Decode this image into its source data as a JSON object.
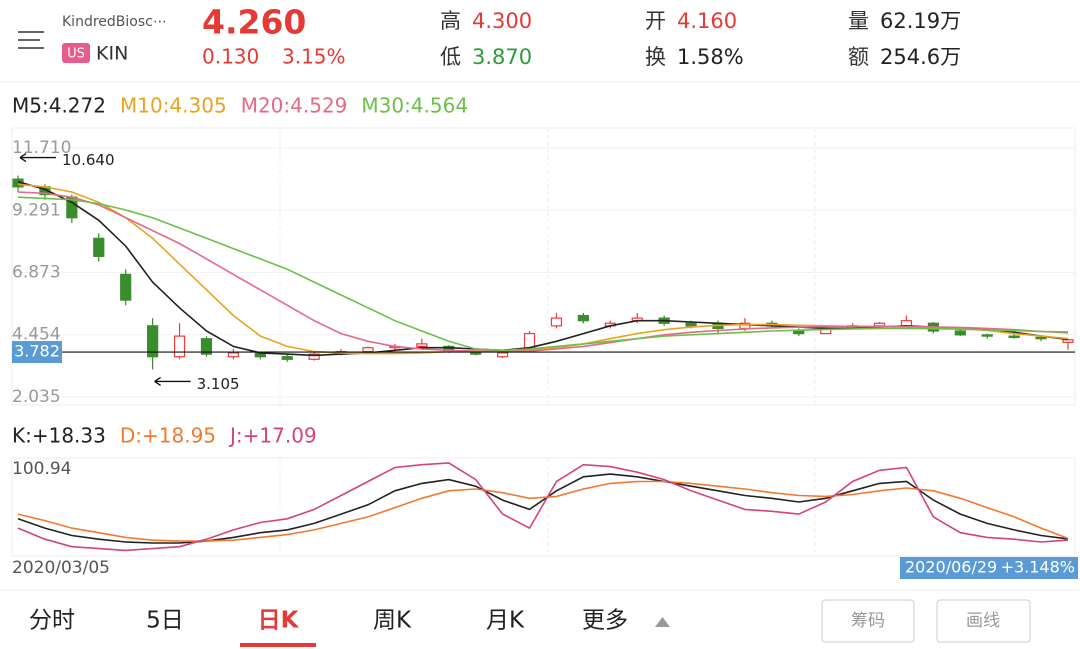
{
  "header": {
    "name": "KindredBiosc⋯",
    "market": "US",
    "ticker": "KIN",
    "price": "4.260",
    "change": "0.130",
    "change_pct": "3.15%",
    "stats": [
      {
        "label": "高",
        "value": "4.300",
        "color": "#e53935"
      },
      {
        "label": "低",
        "value": "3.870",
        "color": "#2e9a3a"
      },
      {
        "label": "开",
        "value": "4.160",
        "color": "#e53935"
      },
      {
        "label": "换",
        "value": "1.58%",
        "color": "#222222"
      },
      {
        "label": "量",
        "value": "62.19万",
        "color": "#222222"
      },
      {
        "label": "额",
        "value": "254.6万",
        "color": "#222222"
      }
    ]
  },
  "chart_data": [
    {
      "type": "candlestick",
      "ylim": [
        2.035,
        11.71
      ],
      "yticks": [
        {
          "value": 11.71,
          "label": "11.710"
        },
        9.291,
        6.873,
        4.454,
        2.035
      ],
      "up_color": "#ee3b3b",
      "down_color": "#3a8d2d",
      "ref_line": 3.782,
      "annotations": [
        {
          "value": 10.64,
          "label": "10.640"
        },
        3.105
      ],
      "candles": [
        [
          10.5,
          10.64,
          10.0,
          10.2
        ],
        [
          10.2,
          10.3,
          9.7,
          9.9
        ],
        [
          9.8,
          9.9,
          8.8,
          9.0
        ],
        [
          8.2,
          8.4,
          7.3,
          7.5
        ],
        [
          6.8,
          7.0,
          5.6,
          5.8
        ],
        [
          4.8,
          5.1,
          3.105,
          3.6
        ],
        [
          3.6,
          4.9,
          3.5,
          4.4
        ],
        [
          4.3,
          4.4,
          3.6,
          3.7
        ],
        [
          3.6,
          3.9,
          3.5,
          3.75
        ],
        [
          3.75,
          3.8,
          3.5,
          3.6
        ],
        [
          3.6,
          3.7,
          3.4,
          3.5
        ],
        [
          3.5,
          3.8,
          3.45,
          3.7
        ],
        [
          3.7,
          3.9,
          3.65,
          3.8
        ],
        [
          3.8,
          4.0,
          3.7,
          3.95
        ],
        [
          3.95,
          4.1,
          3.85,
          4.0
        ],
        [
          4.0,
          4.3,
          3.9,
          4.1
        ],
        [
          4.0,
          4.05,
          3.75,
          3.8
        ],
        [
          3.8,
          3.85,
          3.65,
          3.7
        ],
        [
          3.6,
          3.8,
          3.55,
          3.75
        ],
        [
          3.8,
          4.6,
          3.8,
          4.5
        ],
        [
          4.8,
          5.3,
          4.7,
          5.1
        ],
        [
          5.2,
          5.3,
          4.9,
          5.0
        ],
        [
          4.8,
          5.0,
          4.7,
          4.9
        ],
        [
          5.0,
          5.3,
          4.9,
          5.1
        ],
        [
          5.1,
          5.2,
          4.8,
          4.9
        ],
        [
          4.9,
          5.0,
          4.7,
          4.8
        ],
        [
          4.9,
          5.0,
          4.5,
          4.7
        ],
        [
          4.7,
          5.1,
          4.6,
          4.9
        ],
        [
          4.9,
          5.0,
          4.7,
          4.8
        ],
        [
          4.6,
          4.7,
          4.4,
          4.5
        ],
        [
          4.5,
          4.8,
          4.5,
          4.7
        ],
        [
          4.7,
          4.9,
          4.65,
          4.8
        ],
        [
          4.8,
          4.95,
          4.7,
          4.9
        ],
        [
          4.8,
          5.2,
          4.75,
          5.0
        ],
        [
          4.9,
          4.95,
          4.5,
          4.6
        ],
        [
          4.6,
          4.65,
          4.4,
          4.45
        ],
        [
          4.45,
          4.5,
          4.3,
          4.4
        ],
        [
          4.4,
          4.5,
          4.3,
          4.35
        ],
        [
          4.35,
          4.4,
          4.2,
          4.3
        ],
        [
          4.16,
          4.3,
          3.87,
          4.26
        ]
      ],
      "series": [
        {
          "name": "M5:4.272",
          "color": "#222222",
          "values": [
            10.4,
            10.1,
            9.6,
            8.9,
            7.9,
            6.5,
            5.5,
            4.6,
            4.0,
            3.75,
            3.7,
            3.65,
            3.7,
            3.75,
            3.85,
            3.95,
            3.95,
            3.9,
            3.85,
            3.95,
            4.2,
            4.5,
            4.8,
            5.0,
            5.0,
            4.95,
            4.9,
            4.85,
            4.8,
            4.75,
            4.7,
            4.7,
            4.75,
            4.8,
            4.75,
            4.7,
            4.65,
            4.55,
            4.4,
            4.272
          ]
        },
        {
          "name": "M10:4.305",
          "color": "#e8a320",
          "values": [
            10.3,
            10.2,
            10.0,
            9.6,
            9.0,
            8.2,
            7.2,
            6.2,
            5.2,
            4.4,
            4.0,
            3.8,
            3.75,
            3.72,
            3.72,
            3.75,
            3.8,
            3.82,
            3.83,
            3.85,
            3.95,
            4.1,
            4.3,
            4.5,
            4.65,
            4.75,
            4.82,
            4.85,
            4.85,
            4.82,
            4.8,
            4.78,
            4.77,
            4.76,
            4.74,
            4.7,
            4.62,
            4.5,
            4.4,
            4.305
          ]
        },
        {
          "name": "M20:4.529",
          "color": "#e56a87",
          "values": [
            10.0,
            9.95,
            9.8,
            9.5,
            9.0,
            8.5,
            8.0,
            7.4,
            6.8,
            6.2,
            5.6,
            5.0,
            4.5,
            4.2,
            4.0,
            3.9,
            3.85,
            3.82,
            3.8,
            3.82,
            3.9,
            4.0,
            4.15,
            4.3,
            4.45,
            4.55,
            4.62,
            4.68,
            4.72,
            4.75,
            4.77,
            4.78,
            4.78,
            4.77,
            4.76,
            4.74,
            4.7,
            4.65,
            4.58,
            4.529
          ]
        },
        {
          "name": "M30:4.564",
          "color": "#6cc04a",
          "values": [
            9.8,
            9.75,
            9.7,
            9.55,
            9.3,
            9.0,
            8.6,
            8.2,
            7.8,
            7.4,
            7.0,
            6.5,
            6.0,
            5.5,
            5.0,
            4.6,
            4.2,
            3.9,
            3.85,
            3.9,
            4.0,
            4.1,
            4.2,
            4.3,
            4.4,
            4.45,
            4.5,
            4.55,
            4.6,
            4.63,
            4.66,
            4.68,
            4.7,
            4.7,
            4.69,
            4.67,
            4.64,
            4.61,
            4.58,
            4.564
          ]
        }
      ]
    },
    {
      "type": "line",
      "ylim": [
        0,
        100.94
      ],
      "yticks": [
        100.94
      ],
      "series": [
        {
          "name": "K:+18.33",
          "color": "#222222",
          "values": [
            40,
            30,
            22,
            18,
            15,
            14,
            14,
            16,
            20,
            25,
            28,
            35,
            45,
            55,
            70,
            78,
            82,
            75,
            60,
            50,
            70,
            85,
            88,
            85,
            80,
            75,
            70,
            65,
            62,
            58,
            62,
            70,
            78,
            80,
            60,
            45,
            35,
            28,
            22,
            18.33
          ]
        },
        {
          "name": "D:+18.95",
          "color": "#f07a30",
          "values": [
            45,
            38,
            30,
            25,
            20,
            17,
            16,
            16,
            17,
            20,
            23,
            28,
            35,
            42,
            52,
            62,
            70,
            72,
            68,
            62,
            64,
            72,
            78,
            80,
            80,
            78,
            75,
            72,
            68,
            65,
            64,
            66,
            70,
            73,
            70,
            62,
            52,
            42,
            30,
            18.95
          ]
        },
        {
          "name": "J:+17.09",
          "color": "#d2437f",
          "values": [
            30,
            18,
            10,
            8,
            6,
            8,
            10,
            18,
            28,
            36,
            40,
            50,
            65,
            80,
            95,
            98,
            100,
            82,
            45,
            30,
            80,
            98,
            96,
            90,
            82,
            70,
            60,
            50,
            48,
            45,
            58,
            80,
            92,
            95,
            42,
            25,
            20,
            18,
            15,
            17.09
          ]
        }
      ]
    }
  ],
  "dates": {
    "start": "2020/03/05",
    "end": "2020/06/29",
    "change": "+3.148%"
  },
  "footer": {
    "tabs": [
      "分时",
      "5日",
      "日K",
      "周K",
      "月K",
      "更多"
    ],
    "active_tab": 2,
    "buttons": [
      "筹码",
      "画线"
    ]
  }
}
